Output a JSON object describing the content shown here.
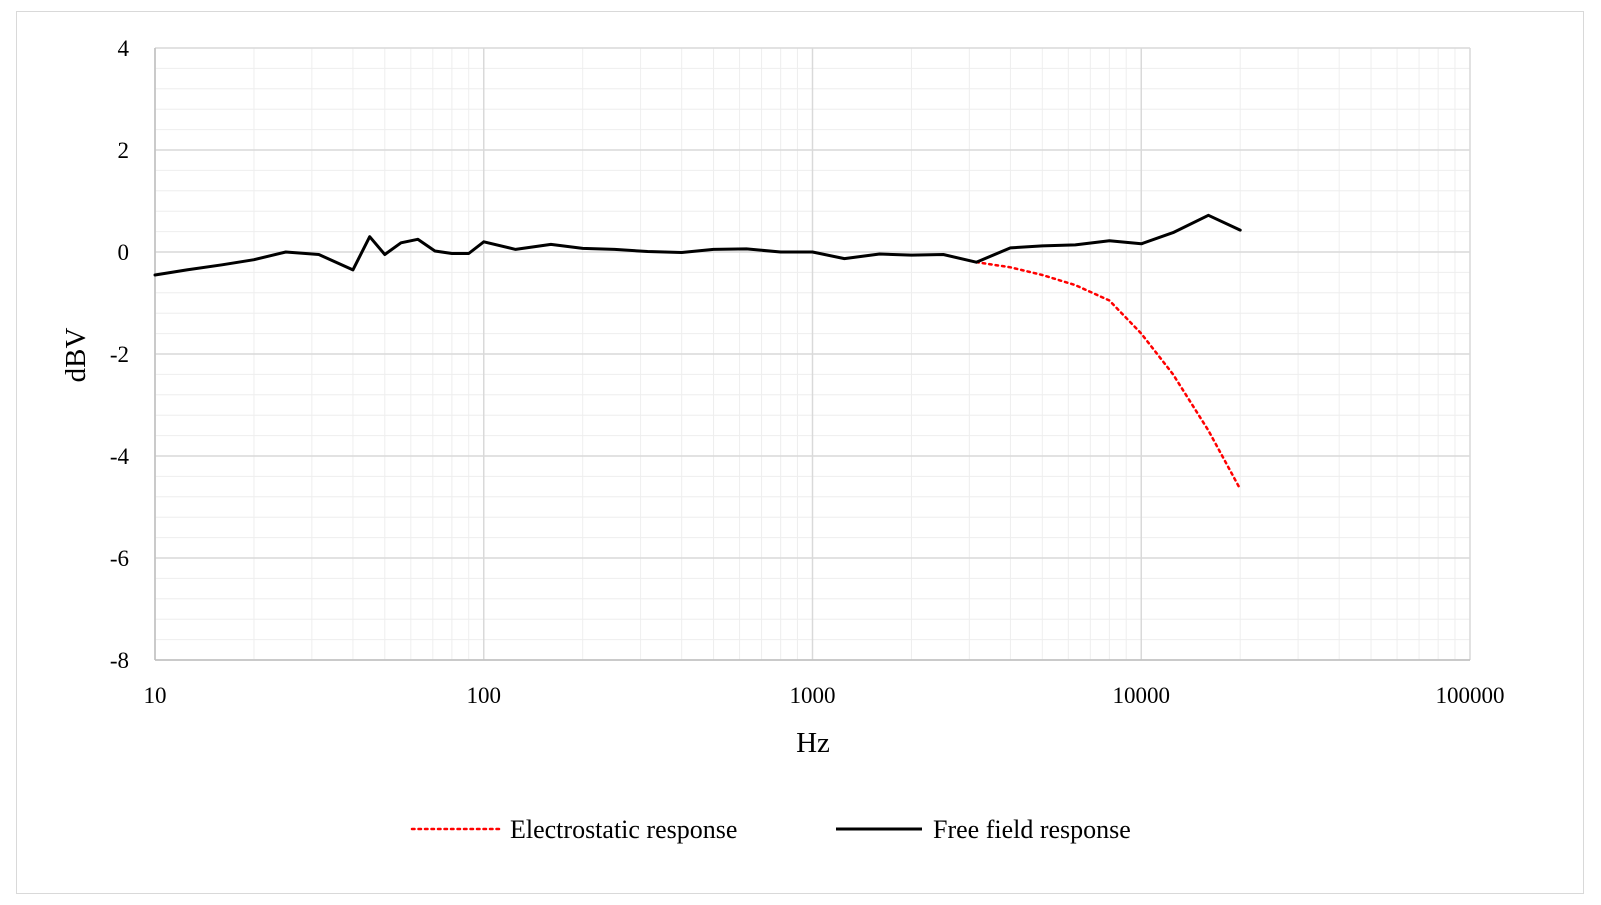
{
  "chart_data": {
    "type": "line",
    "title": "",
    "xlabel": "Hz",
    "ylabel": "dBV",
    "x_scale": "log",
    "xlim": [
      10,
      100000
    ],
    "ylim": [
      -8,
      4
    ],
    "x_ticks": [
      "10",
      "100",
      "1000",
      "10000",
      "100000"
    ],
    "y_ticks": [
      "4",
      "2",
      "0",
      "-2",
      "-4",
      "-6",
      "-8"
    ],
    "y_tick_values": [
      4,
      2,
      0,
      -2,
      -4,
      -6,
      -8
    ],
    "x_tick_values": [
      10,
      100,
      1000,
      10000,
      100000
    ],
    "grid": true,
    "legend_position": "bottom",
    "series": [
      {
        "name": "Electrostatic response",
        "color": "#ff0000",
        "style": "dotted",
        "x": [
          3150,
          4000,
          5000,
          6300,
          8000,
          10000,
          12500,
          16000,
          20000
        ],
        "y": [
          -0.2,
          -0.3,
          -0.45,
          -0.65,
          -0.95,
          -1.6,
          -2.4,
          -3.5,
          -4.65
        ]
      },
      {
        "name": "Free field response",
        "color": "#000000",
        "style": "solid",
        "x": [
          10,
          12.5,
          16,
          20,
          25,
          31.5,
          40,
          45,
          50,
          56,
          63,
          71,
          80,
          90,
          100,
          125,
          160,
          200,
          250,
          315,
          400,
          500,
          630,
          800,
          1000,
          1250,
          1600,
          2000,
          2500,
          3150,
          4000,
          5000,
          6300,
          8000,
          10000,
          12500,
          16000,
          20000
        ],
        "y": [
          -0.45,
          -0.35,
          -0.25,
          -0.15,
          0.0,
          -0.05,
          -0.35,
          0.3,
          -0.05,
          0.18,
          0.25,
          0.02,
          -0.03,
          -0.03,
          0.2,
          0.05,
          0.15,
          0.07,
          0.05,
          0.01,
          -0.01,
          0.05,
          0.06,
          0.0,
          0.0,
          -0.13,
          -0.04,
          -0.06,
          -0.05,
          -0.2,
          0.08,
          0.12,
          0.14,
          0.22,
          0.16,
          0.38,
          0.72,
          0.43
        ]
      }
    ]
  }
}
